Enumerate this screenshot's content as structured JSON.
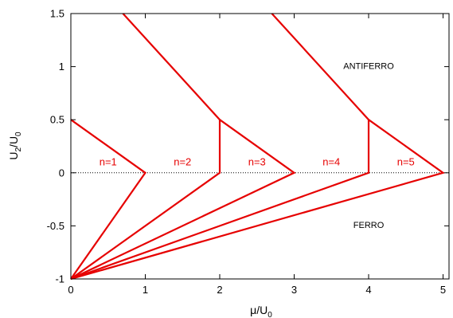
{
  "chart_data": {
    "type": "line",
    "xlabel": {
      "main": "μ/U",
      "sub": "0"
    },
    "ylabel": {
      "main": "U",
      "sub1": "2",
      "mid": "/U",
      "sub2": "0"
    },
    "xlim": [
      0,
      5.08
    ],
    "ylim": [
      -1,
      1.5
    ],
    "x_ticks": [
      {
        "value": 0,
        "label": "0"
      },
      {
        "value": 1,
        "label": "1"
      },
      {
        "value": 2,
        "label": "2"
      },
      {
        "value": 3,
        "label": "3"
      },
      {
        "value": 4,
        "label": "4"
      },
      {
        "value": 5,
        "label": "5"
      }
    ],
    "y_ticks": [
      {
        "value": -1,
        "label": "-1"
      },
      {
        "value": -0.5,
        "label": "-0.5"
      },
      {
        "value": 0,
        "label": "0"
      },
      {
        "value": 0.5,
        "label": "0.5"
      },
      {
        "value": 1,
        "label": "1"
      },
      {
        "value": 1.5,
        "label": "1.5"
      }
    ],
    "grid": false,
    "line_color": "#e60000",
    "reference_line": {
      "y": 0,
      "style": "dotted",
      "color": "#000000"
    },
    "series": [
      {
        "x": [
          0,
          1,
          0
        ],
        "y": [
          0.5,
          0,
          -1
        ]
      },
      {
        "x": [
          0.7,
          2,
          2,
          0
        ],
        "y": [
          1.5,
          0.5,
          0,
          -1
        ]
      },
      {
        "x": [
          2,
          3,
          0
        ],
        "y": [
          0.5,
          0,
          -1
        ]
      },
      {
        "x": [
          2.7,
          4,
          4,
          0
        ],
        "y": [
          1.5,
          0.5,
          0,
          -1
        ]
      },
      {
        "x": [
          4,
          5,
          0
        ],
        "y": [
          0.5,
          0,
          -1
        ]
      }
    ],
    "annotations": [
      {
        "text": "n=1",
        "x": 0.5,
        "y": 0.07,
        "color": "#e60000"
      },
      {
        "text": "n=2",
        "x": 1.5,
        "y": 0.07,
        "color": "#e60000"
      },
      {
        "text": "n=3",
        "x": 2.5,
        "y": 0.07,
        "color": "#e60000"
      },
      {
        "text": "n=4",
        "x": 3.5,
        "y": 0.07,
        "color": "#e60000"
      },
      {
        "text": "n=5",
        "x": 4.5,
        "y": 0.07,
        "color": "#e60000"
      },
      {
        "text": "ANTIFERRO",
        "x": 4.0,
        "y": 0.98,
        "color": "#000000"
      },
      {
        "text": "FERRO",
        "x": 4.0,
        "y": -0.52,
        "color": "#000000"
      }
    ]
  }
}
